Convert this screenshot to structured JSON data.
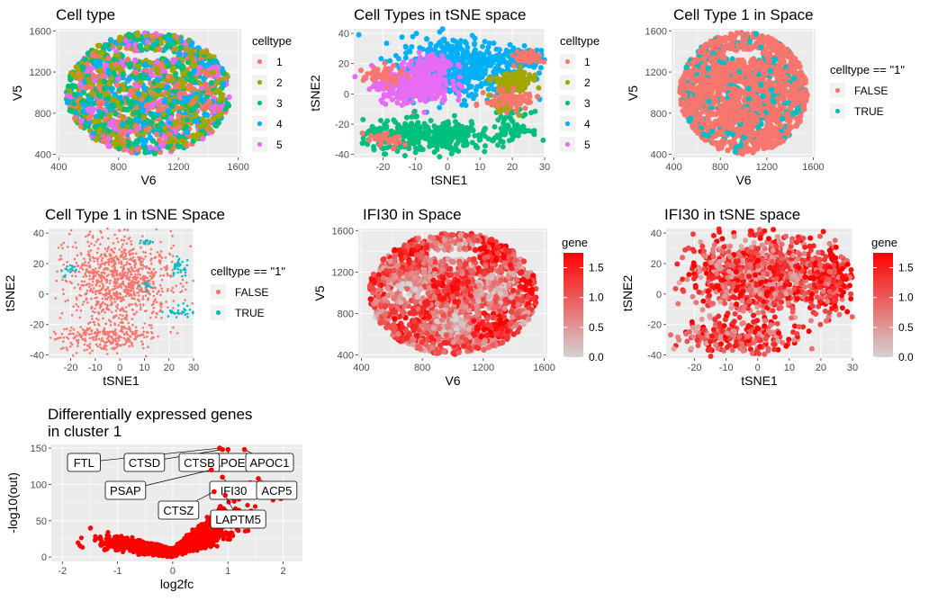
{
  "palette": {
    "1": "#F8766D",
    "2": "#A3A500",
    "3": "#00BF7D",
    "4": "#00B0F6",
    "5": "#E76BF3",
    "FALSE": "#F8766D",
    "TRUE": "#00BFC4",
    "panel_bg": "#EBEBEB",
    "grid": "#ffffff",
    "volcano_point": "#FF0000",
    "gradient_low": "#D3D3D3",
    "gradient_high": "#FF0000"
  },
  "chart_data": [
    {
      "id": "p1",
      "type": "scatter",
      "title": "Cell type",
      "xlabel": "V6",
      "ylabel": "V5",
      "xlim": [
        380,
        1620
      ],
      "ylim": [
        370,
        1620
      ],
      "xticks": [
        400,
        800,
        1200,
        1600
      ],
      "yticks": [
        400,
        800,
        1200,
        1600
      ],
      "grid": true,
      "legend": {
        "title": "celltype",
        "placement": "right",
        "entries": [
          "1",
          "2",
          "3",
          "4",
          "5"
        ]
      },
      "series_shape": "ellipse",
      "center": [
        1000,
        995
      ],
      "radius": [
        550,
        590
      ],
      "categories": [
        "1",
        "2",
        "3",
        "4",
        "5"
      ],
      "weights": [
        0.2,
        0.15,
        0.2,
        0.27,
        0.18
      ],
      "n_points": 1700
    },
    {
      "id": "p2",
      "type": "scatter",
      "title": "Cell Types in tSNE space",
      "xlabel": "tSNE1",
      "ylabel": "tSNE2",
      "xlim": [
        -29,
        30
      ],
      "ylim": [
        -42,
        43
      ],
      "xticks": [
        -20,
        -10,
        0,
        10,
        20,
        30
      ],
      "yticks": [
        -40,
        -20,
        0,
        20,
        40
      ],
      "grid": true,
      "legend": {
        "title": "celltype",
        "placement": "right",
        "entries": [
          "1",
          "2",
          "3",
          "4",
          "5"
        ]
      },
      "clusters": [
        {
          "label": "4",
          "cx": 3,
          "cy": 18,
          "sx": 9,
          "sy": 10,
          "n": 480
        },
        {
          "label": "4",
          "cx": 22,
          "cy": 24,
          "sx": 4,
          "sy": 4,
          "n": 120
        },
        {
          "label": "5",
          "cx": -11,
          "cy": 6,
          "sx": 6,
          "sy": 6,
          "n": 340
        },
        {
          "label": "5",
          "cx": -4,
          "cy": 20,
          "sx": 3,
          "sy": 3,
          "n": 60
        },
        {
          "label": "3",
          "cx": -6,
          "cy": -28,
          "sx": 10,
          "sy": 5,
          "n": 360
        },
        {
          "label": "3",
          "cx": 20,
          "cy": -22,
          "sx": 3,
          "sy": 5,
          "n": 70
        },
        {
          "label": "2",
          "cx": 20,
          "cy": 7,
          "sx": 3,
          "sy": 4,
          "n": 120
        },
        {
          "label": "2",
          "cx": 17,
          "cy": -8,
          "sx": 2,
          "sy": 2,
          "n": 40
        },
        {
          "label": "1",
          "cx": 25,
          "cy": 24,
          "sx": 2,
          "sy": 2,
          "n": 60
        },
        {
          "label": "1",
          "cx": 20,
          "cy": -4,
          "sx": 4,
          "sy": 3,
          "n": 80
        },
        {
          "label": "1",
          "cx": -20,
          "cy": 12,
          "sx": 3,
          "sy": 3,
          "n": 40
        },
        {
          "label": "1",
          "cx": -20,
          "cy": -30,
          "sx": 3,
          "sy": 3,
          "n": 30
        }
      ]
    },
    {
      "id": "p3",
      "type": "scatter",
      "title": "Cell Type 1 in Space",
      "xlabel": "V6",
      "ylabel": "V5",
      "xlim": [
        380,
        1620
      ],
      "ylim": [
        370,
        1620
      ],
      "xticks": [
        400,
        800,
        1200,
        1600
      ],
      "yticks": [
        400,
        800,
        1200,
        1600
      ],
      "grid": true,
      "legend": {
        "title": "celltype == \"1\"",
        "placement": "right",
        "entries": [
          "FALSE",
          "TRUE"
        ]
      },
      "series_shape": "ellipse",
      "center": [
        1000,
        995
      ],
      "radius": [
        550,
        590
      ],
      "categories": [
        "FALSE",
        "TRUE"
      ],
      "weights": [
        0.86,
        0.14
      ],
      "n_points": 1700
    },
    {
      "id": "p4",
      "type": "scatter",
      "title": "Cell Type 1 in tSNE Space",
      "xlabel": "tSNE1",
      "ylabel": "tSNE2",
      "xlim": [
        -29,
        30
      ],
      "ylim": [
        -42,
        43
      ],
      "xticks": [
        -20,
        -10,
        0,
        10,
        20,
        30
      ],
      "yticks": [
        -40,
        -20,
        0,
        20,
        40
      ],
      "grid": true,
      "legend": {
        "title": "celltype == \"1\"",
        "placement": "right",
        "entries": [
          "FALSE",
          "TRUE"
        ]
      },
      "clusters": [
        {
          "label": "FALSE",
          "cx": 0,
          "cy": 10,
          "sx": 11,
          "sy": 14,
          "n": 900
        },
        {
          "label": "FALSE",
          "cx": -6,
          "cy": -28,
          "sx": 10,
          "sy": 5,
          "n": 260
        },
        {
          "label": "TRUE",
          "cx": 24,
          "cy": 18,
          "sx": 2,
          "sy": 3,
          "n": 40
        },
        {
          "label": "TRUE",
          "cx": 25,
          "cy": -12,
          "sx": 3,
          "sy": 2,
          "n": 30
        },
        {
          "label": "TRUE",
          "cx": -20,
          "cy": 15,
          "sx": 2,
          "sy": 2,
          "n": 15
        },
        {
          "label": "TRUE",
          "cx": 10,
          "cy": 35,
          "sx": 2,
          "sy": 1,
          "n": 12
        },
        {
          "label": "TRUE",
          "cx": 12,
          "cy": 5,
          "sx": 2,
          "sy": 2,
          "n": 12
        }
      ]
    },
    {
      "id": "p5",
      "type": "scatter",
      "title": "IFI30 in Space",
      "xlabel": "V6",
      "ylabel": "V5",
      "xlim": [
        380,
        1620
      ],
      "ylim": [
        370,
        1620
      ],
      "xticks": [
        400,
        800,
        1200,
        1600
      ],
      "yticks": [
        400,
        800,
        1200,
        1600
      ],
      "grid": true,
      "legend": {
        "title": "gene",
        "placement": "right",
        "type": "gradient",
        "range": [
          0,
          1.75
        ],
        "breaks": [
          "0.0",
          "0.5",
          "1.0",
          "1.5"
        ]
      },
      "series_shape": "ellipse",
      "center": [
        1000,
        995
      ],
      "radius": [
        550,
        590
      ],
      "value_range": [
        0,
        1.75
      ],
      "n_points": 1700
    },
    {
      "id": "p6",
      "type": "scatter",
      "title": "IFI30 in tSNE space",
      "xlabel": "tSNE1",
      "ylabel": "tSNE2",
      "xlim": [
        -29,
        30
      ],
      "ylim": [
        -42,
        43
      ],
      "xticks": [
        -20,
        -10,
        0,
        10,
        20,
        30
      ],
      "yticks": [
        -40,
        -20,
        0,
        20,
        40
      ],
      "grid": true,
      "legend": {
        "title": "gene",
        "placement": "right",
        "type": "gradient",
        "range": [
          0,
          1.75
        ],
        "breaks": [
          "0.0",
          "0.5",
          "1.0",
          "1.5"
        ]
      },
      "clusters": [
        {
          "cx": 0,
          "cy": 12,
          "sx": 11,
          "sy": 13,
          "n": 900
        },
        {
          "cx": -6,
          "cy": -28,
          "sx": 10,
          "sy": 5,
          "n": 260
        },
        {
          "cx": 22,
          "cy": 10,
          "sx": 4,
          "sy": 10,
          "n": 200
        }
      ],
      "value_range": [
        0,
        1.75
      ]
    },
    {
      "id": "p7",
      "type": "scatter",
      "title": "Differentially expressed genes\n in cluster 1",
      "xlabel": "log2fc",
      "ylabel": "-log10(out)",
      "xlim": [
        -2.2,
        2.35
      ],
      "ylim": [
        -6,
        155
      ],
      "xticks": [
        -2,
        -1,
        0,
        1,
        2
      ],
      "yticks": [
        0,
        50,
        100,
        150
      ],
      "grid": true,
      "n_points": 1500,
      "labels": [
        {
          "gene": "FTL",
          "x": 0.85,
          "y": 150
        },
        {
          "gene": "CTSD",
          "x": 0.9,
          "y": 148
        },
        {
          "gene": "CTSB",
          "x": 0.6,
          "y": 138
        },
        {
          "gene": "APOE",
          "x": 1.0,
          "y": 148
        },
        {
          "gene": "APOC1",
          "x": 1.3,
          "y": 148
        },
        {
          "gene": "PSAP",
          "x": 0.7,
          "y": 120
        },
        {
          "gene": "IFI30",
          "x": 0.9,
          "y": 110
        },
        {
          "gene": "ACP5",
          "x": 1.55,
          "y": 108
        },
        {
          "gene": "CTSZ",
          "x": 0.75,
          "y": 90
        },
        {
          "gene": "LAPTM5",
          "x": 0.95,
          "y": 85
        }
      ]
    }
  ]
}
